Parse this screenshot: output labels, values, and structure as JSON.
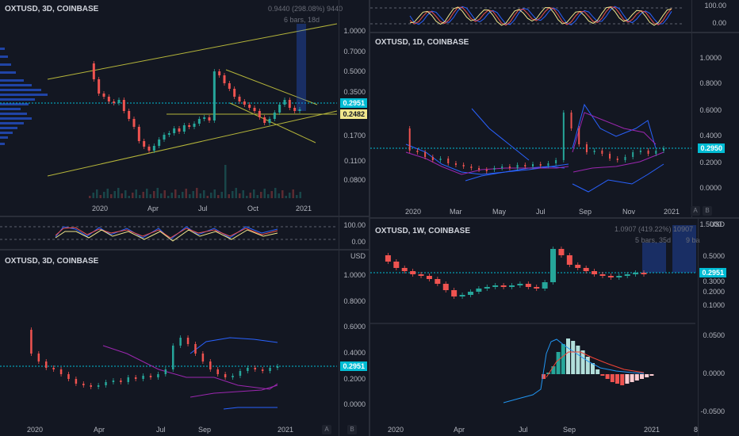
{
  "panes": {
    "top_left": {
      "title": "OXTUSD, 3D, COINBASE",
      "note_change": "0.9440 (298.08%) 9440",
      "note_bars": "6 bars, 18d",
      "yticks": [
        "1.0000",
        "0.7000",
        "0.5000",
        "0.3500",
        "0.1700",
        "0.1100",
        "0.0800"
      ],
      "price_cyan": "0.2951",
      "price_yellow": "0.2482",
      "xticks": [
        "2020",
        "Apr",
        "Jul",
        "Oct",
        "2021"
      ]
    },
    "osc_left": {
      "yticks": [
        "100.00",
        "0.00"
      ]
    },
    "bottom_left": {
      "title": "OXTUSD, 3D, COINBASE",
      "usd": "USD",
      "yticks": [
        "1.0000",
        "0.8000",
        "0.6000",
        "0.4000",
        "0.2000",
        "0.0000"
      ],
      "price_cyan": "0.2951",
      "xticks": [
        "2020",
        "Apr",
        "Jul",
        "Sep",
        "2021"
      ],
      "btn_a": "A",
      "btn_b": "B"
    },
    "osc_right": {
      "yticks": [
        "100.00",
        "0.00"
      ]
    },
    "top_right": {
      "title": "OXTUSD, 1D, COINBASE",
      "yticks": [
        "1.0000",
        "0.8000",
        "0.6000",
        "0.4000",
        "0.2000",
        "0.0000"
      ],
      "price_cyan": "0.2950",
      "xticks": [
        "2020",
        "Mar",
        "May",
        "Jul",
        "Sep",
        "Nov",
        "2021"
      ],
      "btn_a": "A",
      "btn_b": "B"
    },
    "bottom_right": {
      "title": "OXTUSD, 1W, COINBASE",
      "note_change": "1.0907 (419.22%) 10907",
      "note_bars": "5 bars, 35d",
      "note_bars2": "9 ba",
      "usd": "USD",
      "yticks": [
        "1.5000",
        "0.5000",
        "0.3000",
        "0.2000",
        "0.1000"
      ],
      "price_cyan": "0.2951",
      "macd_yticks": [
        "0.0500",
        "0.0000",
        "-0.0500"
      ],
      "xticks": [
        "2020",
        "Apr",
        "Jul",
        "Sep",
        "2021",
        "8"
      ]
    }
  },
  "colors": {
    "background": "#131722",
    "up": "#26a69a",
    "down": "#ef5350",
    "cyan": "#00bcd4",
    "trend": "#b5b53a",
    "grid": "#2a2e39"
  }
}
